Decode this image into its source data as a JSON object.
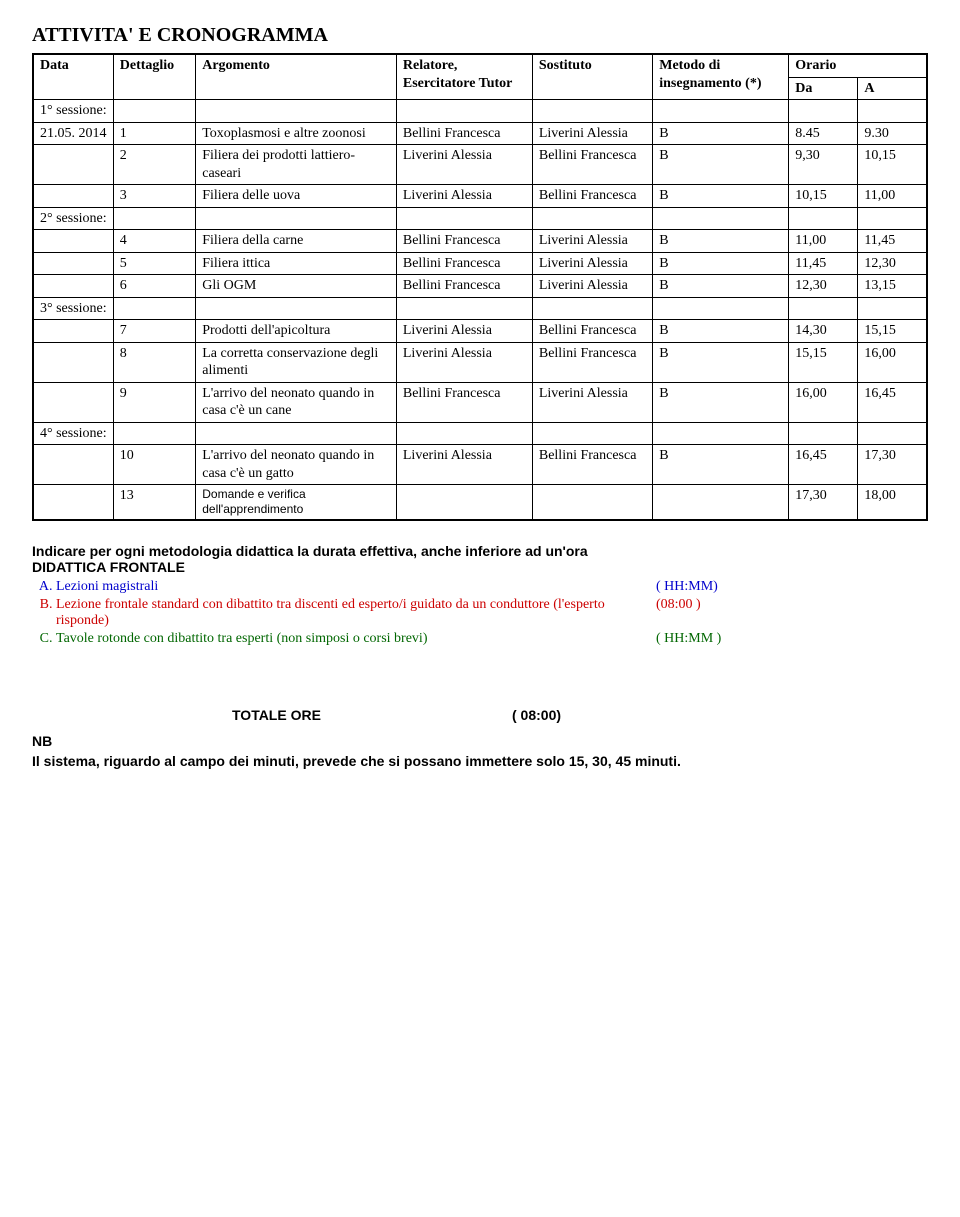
{
  "title": "ATTIVITA' E CRONOGRAMMA",
  "headers": {
    "data": "Data",
    "dettaglio": "Dettaglio",
    "argomento": "Argomento",
    "relatore": "Relatore, Esercitatore Tutor",
    "sostituto": "Sostituto",
    "metodo": "Metodo di insegnamento (*)",
    "orario": "Orario",
    "da": "Da",
    "a": "A"
  },
  "sessions": [
    {
      "label": "1° sessione:",
      "date": "21.05. 2014",
      "rows": [
        {
          "n": "1",
          "arg": "Toxoplasmosi e altre zoonosi",
          "rel": "Bellini Francesca",
          "sost": "Liverini Alessia",
          "met": "B",
          "da": "8.45",
          "a": "9.30"
        },
        {
          "n": "2",
          "arg": "Filiera dei prodotti lattiero-caseari",
          "rel": "Liverini Alessia",
          "sost": "Bellini Francesca",
          "met": "B",
          "da": "9,30",
          "a": "10,15"
        },
        {
          "n": "3",
          "arg": "Filiera delle uova",
          "rel": "Liverini Alessia",
          "sost": "Bellini Francesca",
          "met": "B",
          "da": "10,15",
          "a": "11,00"
        }
      ]
    },
    {
      "label": "2° sessione:",
      "date": "",
      "rows": [
        {
          "n": "4",
          "arg": "Filiera della carne",
          "rel": "Bellini Francesca",
          "sost": "Liverini Alessia",
          "met": "B",
          "da": "11,00",
          "a": "11,45"
        },
        {
          "n": "5",
          "arg": "Filiera ittica",
          "rel": "Bellini Francesca",
          "sost": "Liverini Alessia",
          "met": "B",
          "da": "11,45",
          "a": "12,30"
        },
        {
          "n": "6",
          "arg": "Gli OGM",
          "rel": "Bellini Francesca",
          "sost": "Liverini Alessia",
          "met": "B",
          "da": "12,30",
          "a": "13,15"
        }
      ]
    },
    {
      "label": "3° sessione:",
      "date": "",
      "rows": [
        {
          "n": "7",
          "arg": "Prodotti dell'apicoltura",
          "rel": "Liverini Alessia",
          "sost": "Bellini Francesca",
          "met": "B",
          "da": "14,30",
          "a": "15,15"
        },
        {
          "n": "8",
          "arg": "La corretta conservazione degli alimenti",
          "rel": "Liverini Alessia",
          "sost": "Bellini Francesca",
          "met": "B",
          "da": "15,15",
          "a": "16,00"
        },
        {
          "n": "9",
          "arg": "L'arrivo del neonato quando in casa c'è un cane",
          "rel": "Bellini Francesca",
          "sost": "Liverini Alessia",
          "met": "B",
          "da": "16,00",
          "a": "16,45"
        }
      ]
    },
    {
      "label": "4° sessione:",
      "date": "",
      "rows": [
        {
          "n": "10",
          "arg": "L'arrivo del neonato quando in casa c'è un gatto",
          "rel": "Liverini Alessia",
          "sost": "Bellini Francesca",
          "met": "B",
          "da": "16,45",
          "a": "17,30"
        }
      ]
    }
  ],
  "footer_row": {
    "n": "13",
    "arg": "Domande e verifica dell'apprendimento",
    "da": "17,30",
    "a": "18,00"
  },
  "note": {
    "line1": "Indicare per ogni metodologia didattica la durata effettiva, anche inferiore ad un'ora",
    "line2": "DIDATTICA FRONTALE",
    "items": [
      {
        "label": "Lezioni magistrali",
        "time": "( HH:MM)",
        "color": "blue"
      },
      {
        "label": "Lezione frontale standard con dibattito tra discenti ed esperto/i guidato da un conduttore (l'esperto risponde)",
        "time": "(08:00 )",
        "color": "red"
      },
      {
        "label": "Tavole rotonde con dibattito tra esperti (non simposi o corsi brevi)",
        "time": "( HH:MM )",
        "color": "green"
      }
    ]
  },
  "totale": {
    "label": "TOTALE ORE",
    "value": "( 08:00)"
  },
  "nb": {
    "prefix": "NB",
    "text": "Il sistema, riguardo al campo  dei minuti, prevede che si possano immettere solo 15, 30, 45 minuti."
  }
}
